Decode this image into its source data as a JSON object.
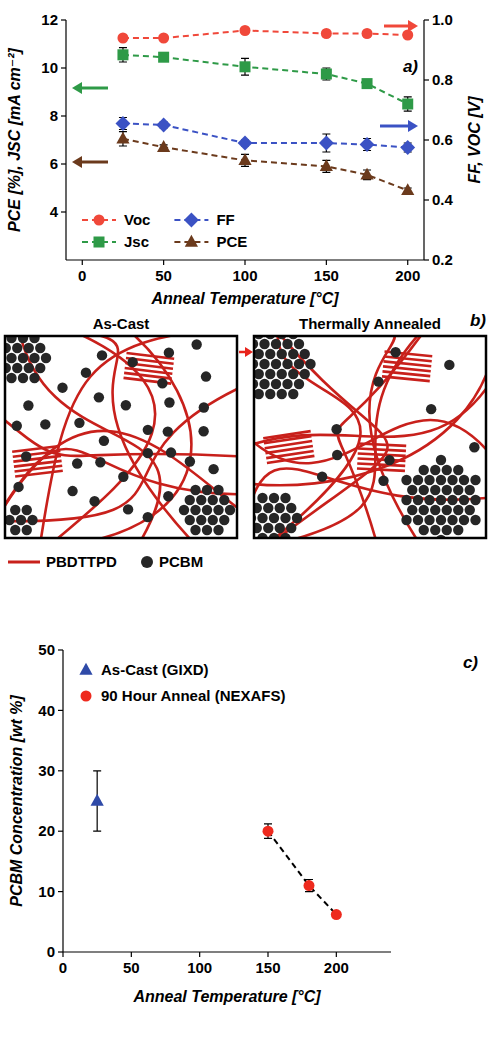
{
  "chart_data": [
    {
      "type": "line",
      "annotations": [
        "a)"
      ],
      "xlabel": "Anneal Temperature [°C]",
      "ylabel": "PCE [%], JSC [mA cm⁻²]",
      "y2label": "FF, VOC [V]",
      "x": [
        25,
        50,
        100,
        150,
        175,
        200
      ],
      "series": [
        {
          "name": "Voc",
          "color": "#f0483a",
          "axis": "y2",
          "marker": "circle",
          "line_style": "dashed",
          "values": [
            0.94,
            0.94,
            0.965,
            0.955,
            0.955,
            0.95
          ],
          "errors": [
            0.005,
            0.005,
            0.005,
            0.005,
            0.005,
            0.005
          ]
        },
        {
          "name": "FF",
          "color": "#3b52c4",
          "axis": "y2",
          "marker": "diamond",
          "line_style": "dashed",
          "values": [
            0.655,
            0.65,
            0.59,
            0.59,
            0.585,
            0.575
          ],
          "errors": [
            0.02,
            0.01,
            0.01,
            0.03,
            0.02,
            0.015
          ]
        },
        {
          "name": "Jsc",
          "color": "#2e9a47",
          "marker": "square",
          "line_style": "dashed",
          "values": [
            10.55,
            10.45,
            10.05,
            9.75,
            9.35,
            8.5
          ],
          "errors": [
            0.3,
            0.1,
            0.35,
            0.25,
            0.1,
            0.3
          ]
        },
        {
          "name": "PCE",
          "color": "#6b3a1c",
          "marker": "triangle",
          "line_style": "dashed",
          "values": [
            7.05,
            6.7,
            6.15,
            5.9,
            5.55,
            4.9
          ],
          "errors": [
            0.3,
            0.1,
            0.25,
            0.25,
            0.2,
            0.1
          ]
        }
      ],
      "xlim": [
        -10,
        210
      ],
      "xticks": [
        0,
        50,
        100,
        150,
        200
      ],
      "ylim": [
        2,
        12
      ],
      "yticks": [
        4,
        6,
        8,
        10,
        12
      ],
      "y2lim": [
        0.2,
        1.0
      ],
      "y2ticks": [
        0.2,
        0.4,
        0.6,
        0.8,
        {
          "value": 1,
          "label": "1.0"
        }
      ],
      "legend": "lower left",
      "grid": false
    },
    {
      "type": "scatter",
      "annotations": [
        "c)"
      ],
      "xlabel": "Anneal Temperature [°C]",
      "ylabel": "PCBM Concentration [wt %]",
      "series": [
        {
          "name": "As-Cast (GIXD)",
          "color": "#2f4aa8",
          "marker": "triangle",
          "x": [
            25
          ],
          "values": [
            25
          ],
          "errors": [
            5
          ]
        },
        {
          "name": "90 Hour Anneal (NEXAFS)",
          "color": "#ee2a1e",
          "marker": "circle",
          "line_style": "dashed",
          "x": [
            150,
            180,
            200
          ],
          "values": [
            20,
            11,
            6.2
          ],
          "errors": [
            1.2,
            1,
            0.4
          ]
        }
      ],
      "xlim": [
        0,
        240
      ],
      "xticks": [
        0,
        50,
        100,
        150,
        200
      ],
      "ylim": [
        0,
        50
      ],
      "yticks": [
        0,
        10,
        20,
        30,
        40,
        50
      ],
      "legend": "upper left",
      "grid": false
    }
  ],
  "diagram": {
    "label": "b)",
    "panels": [
      "As-Cast",
      "Thermally Annealed"
    ],
    "legend": [
      {
        "name": "PBDTTPD",
        "color": "#c8201b"
      },
      {
        "name": "PCBM",
        "color": "#262626"
      }
    ]
  }
}
